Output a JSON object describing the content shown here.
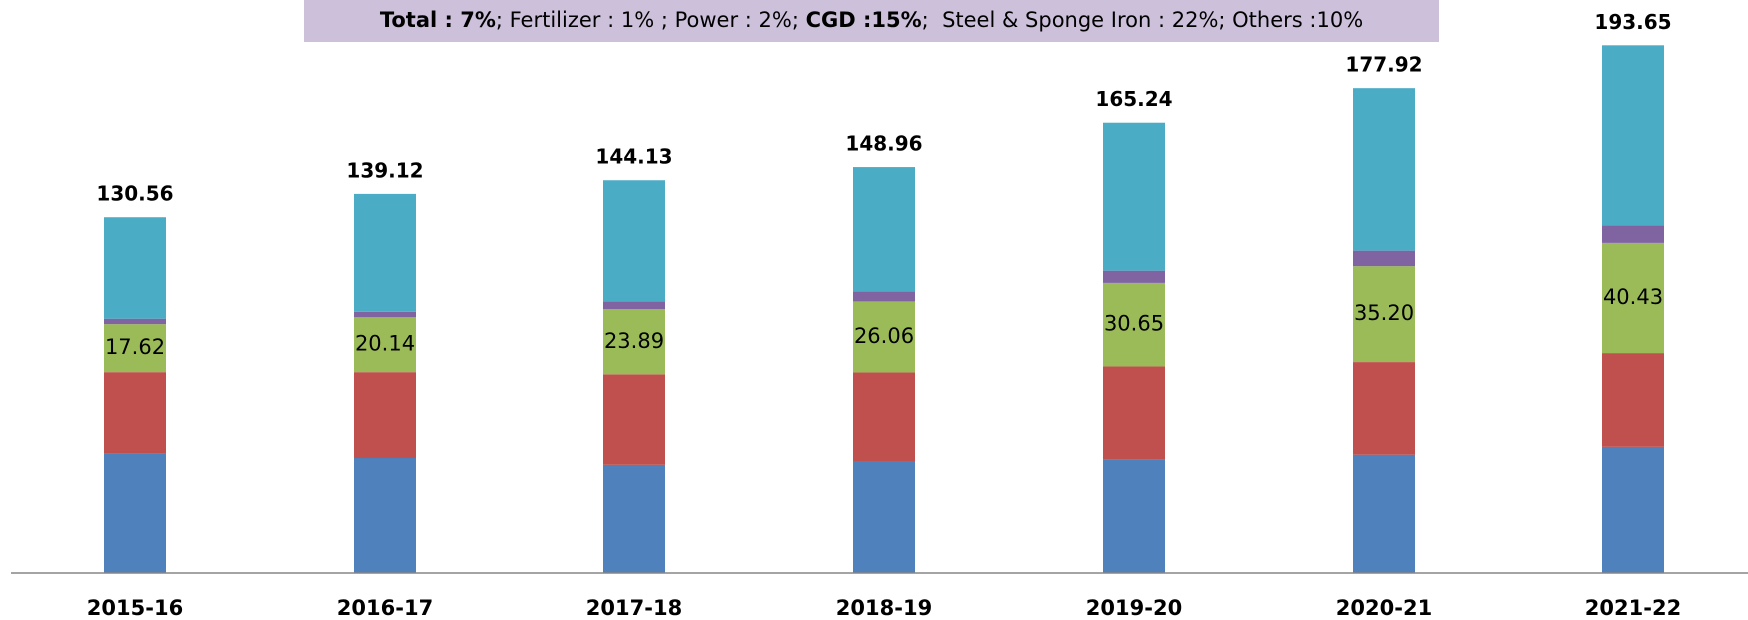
{
  "chart_data": {
    "type": "stacked_bar",
    "banner": [
      {
        "text": "Total : 7%",
        "bold": true
      },
      {
        "text": "; Fertilizer : 1% ; Power : 2%; ",
        "bold": false
      },
      {
        "text": "CGD :15%",
        "bold": true
      },
      {
        "text": ";  Steel & Sponge Iron : 22%; Others :10%",
        "bold": false
      }
    ],
    "categories": [
      "2015-16",
      "2016-17",
      "2017-18",
      "2018-19",
      "2019-20",
      "2020-21",
      "2021-22"
    ],
    "series": [
      {
        "color": "#4f81bd",
        "values": [
          43.8,
          42.2,
          39.7,
          40.9,
          41.8,
          43.4,
          46.3
        ]
      },
      {
        "color": "#c0504d",
        "values": [
          29.9,
          31.5,
          33.2,
          32.7,
          34.0,
          34.0,
          34.4
        ]
      },
      {
        "color": "#9bbb59",
        "values": [
          17.62,
          20.14,
          23.89,
          26.06,
          30.65,
          35.2,
          40.43
        ],
        "value_labels": [
          "17.62",
          "20.14",
          "23.89",
          "26.06",
          "30.65",
          "35.20",
          "40.43"
        ]
      },
      {
        "color": "#8064a2",
        "values": [
          2.0,
          2.0,
          2.9,
          3.7,
          4.5,
          5.7,
          6.5
        ]
      },
      {
        "color": "#4bacc6",
        "values": [
          37.24,
          43.28,
          44.44,
          45.6,
          54.29,
          59.62,
          66.02
        ]
      }
    ],
    "totals": [
      130.56,
      139.12,
      144.13,
      148.96,
      165.24,
      177.92,
      193.65
    ],
    "ylim": [
      0,
      200
    ]
  }
}
